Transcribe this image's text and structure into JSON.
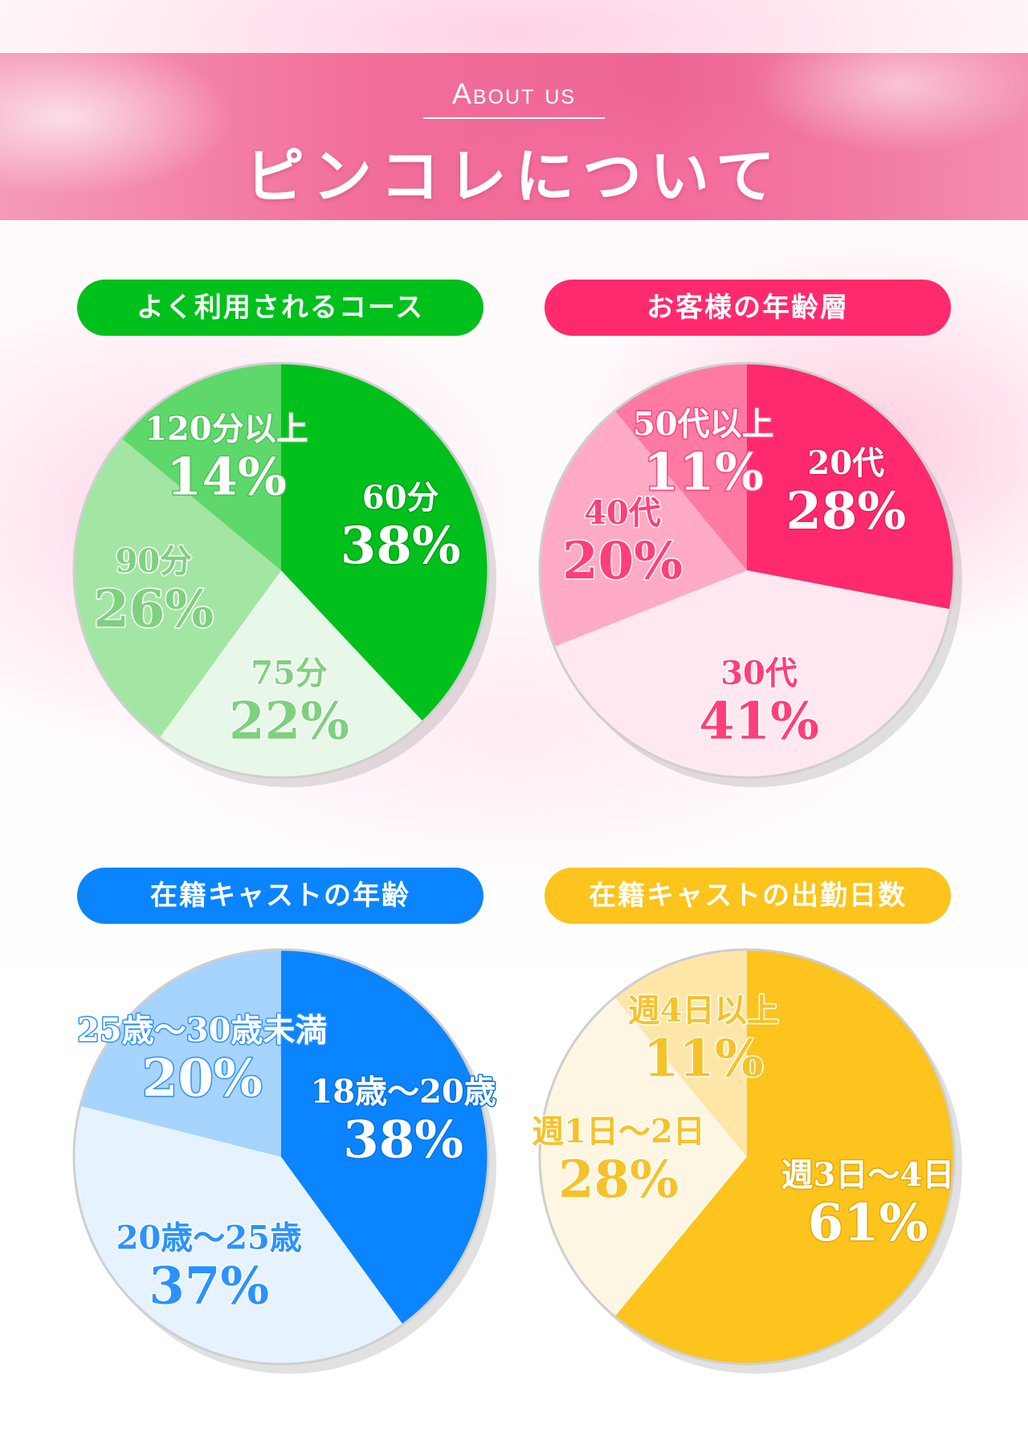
{
  "header": {
    "about_label": "About us",
    "title": "ピンコレについて"
  },
  "colors": {
    "green": "#00c01c",
    "pink": "#ff2a6d",
    "blue": "#0a85ff",
    "yellow": "#fcc41c"
  },
  "chart_data": [
    {
      "type": "pie",
      "title": "よく利用されるコース",
      "categories": [
        "60分",
        "75分",
        "90分",
        "120分以上"
      ],
      "values": [
        38,
        22,
        26,
        14
      ],
      "labels": [
        "38%",
        "22%",
        "26%",
        "14%"
      ],
      "colors": [
        "#00c01c",
        "#e8f8e8",
        "#a3e6a3",
        "#5fd86b"
      ],
      "text_colors": [
        "#ffffff",
        "#7fd07f",
        "#7fd07f",
        "#ffffff"
      ],
      "stroke_colors": [
        "#00a018",
        "#ffffff",
        "#ffffff",
        "#4cbf58"
      ]
    },
    {
      "type": "pie",
      "title": "お客様の年齢層",
      "categories": [
        "20代",
        "30代",
        "40代",
        "50代以上"
      ],
      "values": [
        28,
        41,
        20,
        11
      ],
      "labels": [
        "28%",
        "41%",
        "20%",
        "11%"
      ],
      "colors": [
        "#ff2a6d",
        "#ffe8ef",
        "#ffabc5",
        "#ff7aa2"
      ],
      "text_colors": [
        "#ffffff",
        "#ff3f7a",
        "#ff3f7a",
        "#ffffff"
      ],
      "stroke_colors": [
        "#e61e5c",
        "#ffffff",
        "#ffffff",
        "#ff3f7a"
      ]
    },
    {
      "type": "pie",
      "title": "在籍キャストの年齢",
      "categories": [
        "18歳～20歳",
        "20歳～25歳",
        "25歳～30歳未満"
      ],
      "values": [
        38,
        37,
        20
      ],
      "labels": [
        "38%",
        "37%",
        "20%"
      ],
      "colors": [
        "#0a85ff",
        "#e6f3ff",
        "#a7d3ff"
      ],
      "text_colors": [
        "#ffffff",
        "#2c92ff",
        "#ffffff"
      ],
      "stroke_colors": [
        "#0a6fe0",
        "#ffffff",
        "#2c92ff"
      ]
    },
    {
      "type": "pie",
      "title": "在籍キャストの出勤日数",
      "categories": [
        "週3日～4日",
        "週1日～2日",
        "週4日以上"
      ],
      "values": [
        61,
        28,
        11
      ],
      "labels": [
        "61%",
        "28%",
        "11%"
      ],
      "colors": [
        "#fcc41c",
        "#fdf6e3",
        "#fde6a8"
      ],
      "text_colors": [
        "#ffffff",
        "#f6c22a",
        "#f6c22a"
      ],
      "stroke_colors": [
        "#e2a90a",
        "#ffffff",
        "#ffffff"
      ]
    }
  ]
}
